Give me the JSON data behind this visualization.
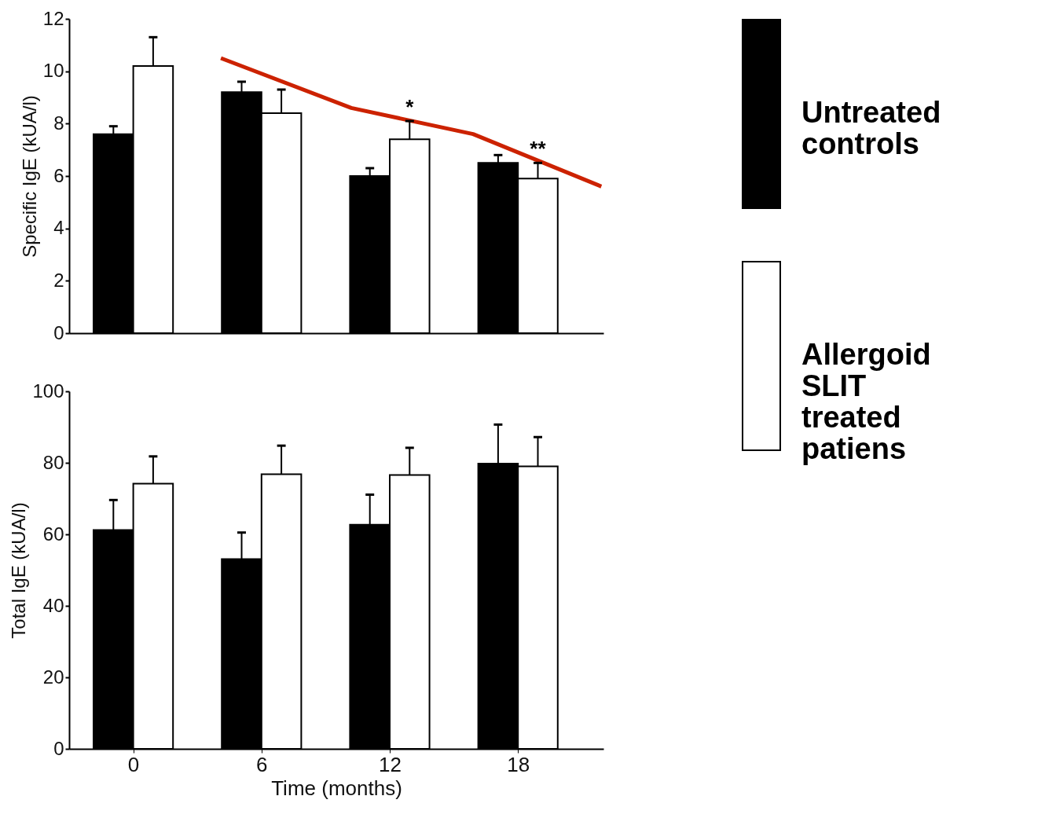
{
  "chart_data": [
    {
      "type": "bar",
      "ylabel": "Specific IgE (kUA/l)",
      "x": [
        0,
        6,
        12,
        18
      ],
      "xlim": [
        -3,
        22
      ],
      "xticks": [
        0,
        6,
        12,
        18
      ],
      "ylim": [
        0,
        12
      ],
      "yticks": [
        0,
        2,
        4,
        6,
        8,
        10,
        12
      ],
      "tick_labels": "y",
      "grid": false,
      "legend": "right",
      "series": [
        {
          "name": "Untreated controls",
          "color": "#000000",
          "values": [
            7.6,
            9.2,
            6.0,
            6.5
          ],
          "errors": [
            [
              7.6,
              7.9
            ],
            [
              9.2,
              9.6
            ],
            [
              6.0,
              6.3
            ],
            [
              6.5,
              6.8
            ]
          ]
        },
        {
          "name": "Allergoid SLIT treated patiens",
          "color": "#ffffff",
          "values": [
            10.2,
            8.4,
            7.4,
            5.9
          ],
          "errors": [
            [
              10.2,
              11.3
            ],
            [
              8.4,
              9.3
            ],
            [
              7.4,
              8.1
            ],
            [
              5.9,
              6.5
            ]
          ]
        },
        {
          "type": "line",
          "color": "#cc2200",
          "x": [
            4.1,
            10.2,
            15.9,
            21.9
          ],
          "values": [
            10.5,
            8.6,
            7.6,
            5.6
          ]
        }
      ],
      "annotations": [
        {
          "text": "*",
          "x": 12,
          "y": 8.1
        },
        {
          "text": "**",
          "x": 18,
          "y": 6.5
        }
      ]
    },
    {
      "type": "bar",
      "ylabel": "Total IgE (kUA/l)",
      "xlabel": "Time (months)",
      "x": [
        0,
        6,
        12,
        18
      ],
      "xlim": [
        -3,
        22
      ],
      "xticks": [
        0,
        6,
        12,
        18
      ],
      "ylim": [
        0,
        100
      ],
      "yticks": [
        0,
        20,
        40,
        60,
        80,
        100
      ],
      "grid": false,
      "series": [
        {
          "color": "#000000",
          "values": [
            61.2,
            53.1,
            62.7,
            79.8
          ],
          "errors": [
            [
              61.2,
              69.6
            ],
            [
              53.1,
              60.5
            ],
            [
              62.7,
              71.1
            ],
            [
              79.8,
              90.7
            ]
          ]
        },
        {
          "color": "#ffffff",
          "values": [
            74.2,
            76.8,
            76.6,
            79.0
          ],
          "errors": [
            [
              74.2,
              81.8
            ],
            [
              76.8,
              84.8
            ],
            [
              76.6,
              84.2
            ],
            [
              79.0,
              87.2
            ]
          ]
        }
      ]
    }
  ]
}
